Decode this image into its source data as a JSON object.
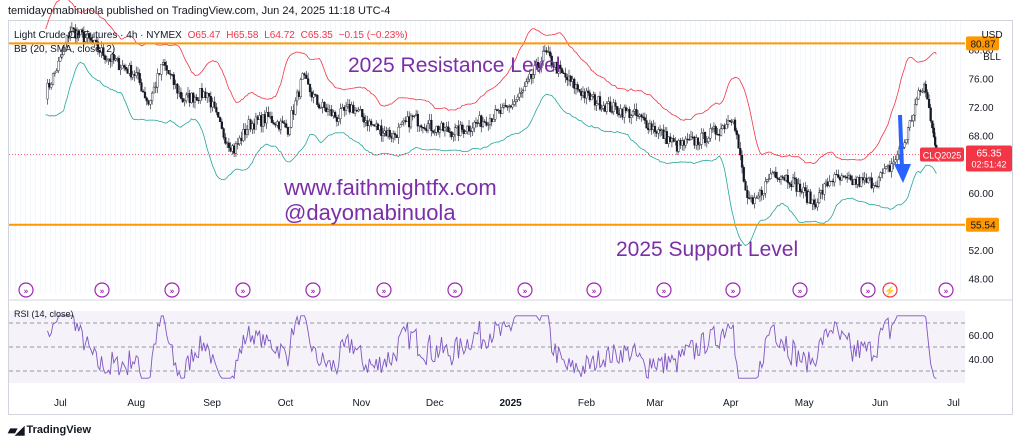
{
  "header": {
    "publisher_line": "temidayomabinuola published on TradingView.com, Jun 24, 2025 11:18 UTC-4"
  },
  "legend": {
    "symbol": "Light Crude Oil Futures · 4h · NYMEX",
    "open": "O65.47",
    "high": "H65.58",
    "low": "L64.72",
    "close": "C65.35",
    "change": "−0.15 (−0.23%)",
    "indicator": "BB (20, SMA, close, 2)",
    "rsi_label": "RSI (14, close)"
  },
  "currency": {
    "code": "USD",
    "unit": "BLL"
  },
  "annotations": {
    "resistance_label": "2025 Resistance Level",
    "support_label": "2025 Support Level",
    "website": "www.faithmightfx.com",
    "handle": "@dayomabinuola"
  },
  "badges": {
    "resistance_price": "80.87",
    "support_price": "55.54",
    "contract": "CLQ2025",
    "last_price": "65.35",
    "countdown": "02:51:42"
  },
  "footer": {
    "brand": "TradingView"
  },
  "colors": {
    "level_line": "#ff9800",
    "annotation_text": "#7b2fa6",
    "price_red": "#f23645",
    "bb_upper": "#f23645",
    "bb_lower": "#26a69a",
    "rsi_line": "#7e57c2",
    "arrow": "#2962ff"
  },
  "chart_data": {
    "type": "line",
    "title": "Light Crude Oil Futures · 4h · NYMEX",
    "x_tick_labels": [
      "Jul",
      "Aug",
      "Sep",
      "Oct",
      "Nov",
      "Dec",
      "2025",
      "Feb",
      "Mar",
      "Apr",
      "May",
      "Jun",
      "Jul"
    ],
    "y_tick_labels": [
      "80.00",
      "76.00",
      "72.00",
      "68.00",
      "60.00",
      "56.00",
      "52.00",
      "48.00"
    ],
    "ylim": [
      46,
      84
    ],
    "levels": [
      {
        "label": "2025 Resistance Level",
        "value": 80.87
      },
      {
        "label": "2025 Support Level",
        "value": 55.54
      }
    ],
    "series": [
      {
        "name": "Light Crude Oil Futures",
        "points": [
          [
            "Jun 25",
            74.0
          ],
          [
            "Jul 1",
            78.5
          ],
          [
            "Jul 5",
            82.8
          ],
          [
            "Jul 12",
            81.5
          ],
          [
            "Jul 20",
            79.0
          ],
          [
            "Aug 1",
            76.5
          ],
          [
            "Aug 6",
            72.5
          ],
          [
            "Aug 12",
            78.0
          ],
          [
            "Aug 20",
            73.0
          ],
          [
            "Aug 30",
            74.0
          ],
          [
            "Sep 5",
            68.5
          ],
          [
            "Sep 10",
            66.0
          ],
          [
            "Sep 16",
            69.5
          ],
          [
            "Sep 24",
            70.5
          ],
          [
            "Oct 2",
            69.0
          ],
          [
            "Oct 8",
            76.0
          ],
          [
            "Oct 14",
            72.5
          ],
          [
            "Oct 22",
            70.5
          ],
          [
            "Oct 28",
            72.0
          ],
          [
            "Nov 5",
            69.5
          ],
          [
            "Nov 14",
            68.0
          ],
          [
            "Nov 22",
            70.5
          ],
          [
            "Dec 1",
            69.0
          ],
          [
            "Dec 10",
            68.5
          ],
          [
            "Dec 20",
            70.0
          ],
          [
            "Dec 30",
            71.5
          ],
          [
            "Jan 6",
            74.0
          ],
          [
            "Jan 15",
            79.5
          ],
          [
            "Jan 22",
            76.5
          ],
          [
            "Feb 1",
            73.5
          ],
          [
            "Feb 10",
            72.0
          ],
          [
            "Feb 20",
            71.0
          ],
          [
            "Mar 1",
            69.0
          ],
          [
            "Mar 10",
            66.5
          ],
          [
            "Mar 20",
            67.5
          ],
          [
            "Mar 28",
            69.0
          ],
          [
            "Apr 2",
            71.0
          ],
          [
            "Apr 7",
            60.0
          ],
          [
            "Apr 10",
            58.0
          ],
          [
            "Apr 18",
            63.0
          ],
          [
            "Apr 25",
            62.0
          ],
          [
            "May 5",
            58.5
          ],
          [
            "May 12",
            62.0
          ],
          [
            "May 20",
            61.5
          ],
          [
            "May 30",
            61.5
          ],
          [
            "Jun 5",
            63.5
          ],
          [
            "Jun 11",
            67.0
          ],
          [
            "Jun 16",
            73.0
          ],
          [
            "Jun 19",
            75.0
          ],
          [
            "Jun 23",
            68.5
          ],
          [
            "Jun 24",
            65.35
          ]
        ]
      }
    ],
    "rsi": {
      "name": "RSI (14, close)",
      "y_tick_labels": [
        "60.00",
        "40.00"
      ],
      "ylim": [
        20,
        80
      ],
      "bands": [
        70,
        50,
        30
      ]
    }
  }
}
